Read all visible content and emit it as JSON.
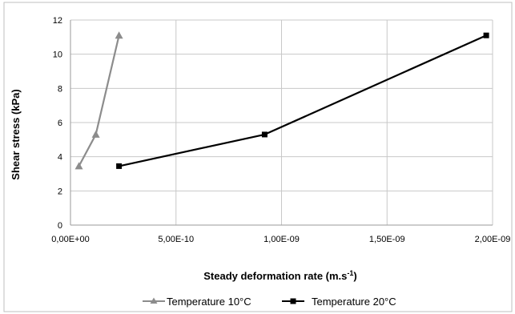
{
  "chart_data": {
    "type": "line",
    "xlabel": "Steady deformation rate (m.s",
    "xlabel_sup": "-1",
    "xlabel_end": ")",
    "ylabel": "Shear stress (kPa)",
    "xlim": [
      0,
      2e-09
    ],
    "ylim": [
      0,
      12
    ],
    "x_ticks": [
      {
        "value": 0,
        "label": "0,00E+00"
      },
      {
        "value": 5e-10,
        "label": "5,00E-10"
      },
      {
        "value": 1e-09,
        "label": "1,00E-09"
      },
      {
        "value": 1.5e-09,
        "label": "1,50E-09"
      },
      {
        "value": 2e-09,
        "label": "2,00E-09"
      }
    ],
    "y_ticks": [
      {
        "value": 0,
        "label": "0"
      },
      {
        "value": 2,
        "label": "2"
      },
      {
        "value": 4,
        "label": "4"
      },
      {
        "value": 6,
        "label": "6"
      },
      {
        "value": 8,
        "label": "8"
      },
      {
        "value": 10,
        "label": "10"
      },
      {
        "value": 12,
        "label": "12"
      }
    ],
    "grid": "vertical and horizontal major gridlines",
    "legend_position": "bottom",
    "series": [
      {
        "name": "Temperature 10°C",
        "color": "#8c8c8c",
        "marker": "triangle",
        "points": [
          {
            "x": 4e-11,
            "y": 3.45
          },
          {
            "x": 1.2e-10,
            "y": 5.3
          },
          {
            "x": 2.3e-10,
            "y": 11.1
          }
        ]
      },
      {
        "name": "Temperature 20°C",
        "color": "#000000",
        "marker": "square",
        "points": [
          {
            "x": 2.3e-10,
            "y": 3.45
          },
          {
            "x": 9.2e-10,
            "y": 5.3
          },
          {
            "x": 1.97e-09,
            "y": 11.1
          }
        ]
      }
    ]
  }
}
